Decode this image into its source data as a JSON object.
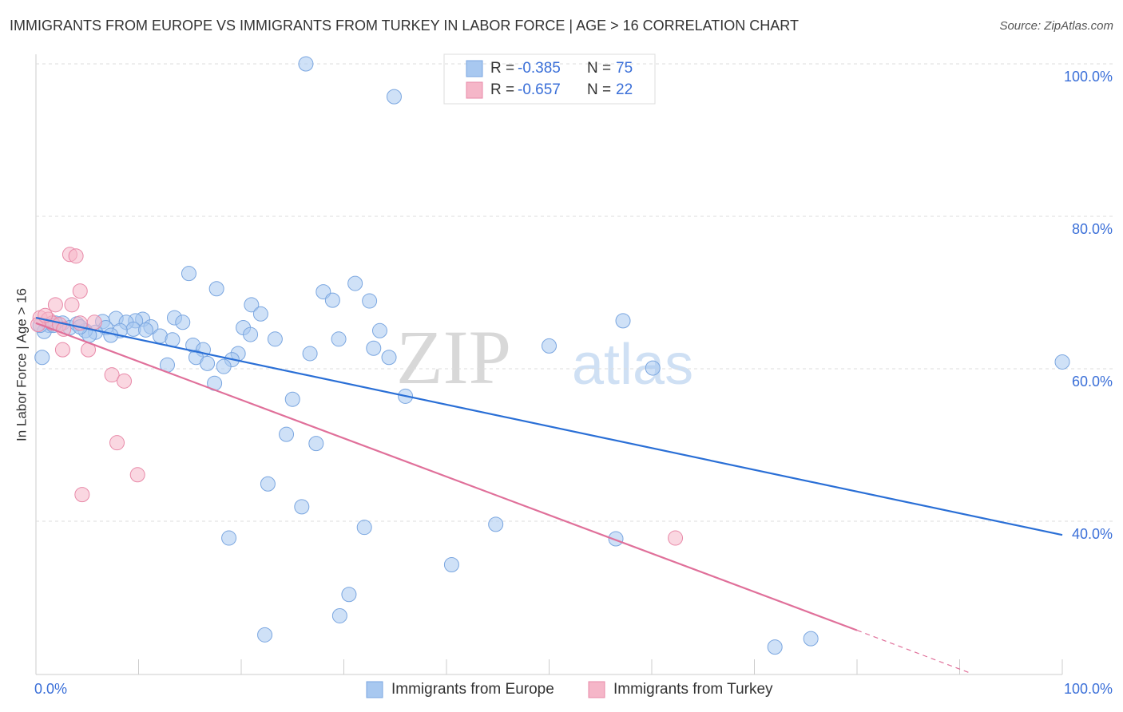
{
  "chart_data": {
    "type": "scatter",
    "title": "IMMIGRANTS FROM EUROPE VS IMMIGRANTS FROM TURKEY IN LABOR FORCE | AGE > 16 CORRELATION CHART",
    "source": "Source: ZipAtlas.com",
    "watermark": [
      "ZIP",
      "atlas"
    ],
    "y_label": "In Labor Force | Age > 16",
    "xlim": [
      0,
      100
    ],
    "ylim": [
      19.9,
      101
    ],
    "xticks": [
      {
        "value": 0,
        "label": "0.0%"
      },
      {
        "value": 100,
        "label": "100.0%"
      }
    ],
    "xminorticks": [
      10,
      20,
      30,
      40,
      50,
      60,
      70,
      80,
      90
    ],
    "yticks": [
      {
        "value": 40,
        "label": "40.0%"
      },
      {
        "value": 60,
        "label": "60.0%"
      },
      {
        "value": 80,
        "label": "80.0%"
      },
      {
        "value": 100,
        "label": "100.0%"
      }
    ],
    "grid": true,
    "stat_labels": {
      "r": "R =",
      "n": "N ="
    },
    "series": [
      {
        "name": "Immigrants from Europe",
        "color": "#a8c8f0",
        "edge": "#7aa6e0",
        "line_color": "#2a6fd6",
        "r": -0.385,
        "n": 75,
        "x": [
          26.3,
          34.9,
          14.9,
          17.6,
          31.1,
          28.0,
          28.9,
          32.5,
          21.0,
          21.9,
          13.5,
          7.8,
          10.4,
          14.3,
          9.7,
          6.5,
          8.8,
          20.2,
          11.2,
          2.6,
          1.3,
          3.3,
          9.5,
          10.7,
          33.5,
          20.9,
          8.2,
          6.8,
          5.8,
          4.8,
          5.2,
          7.3,
          12.1,
          23.3,
          13.3,
          29.5,
          15.3,
          16.3,
          32.9,
          26.7,
          19.7,
          15.6,
          19.1,
          34.4,
          50.0,
          57.2,
          16.7,
          18.3,
          12.8,
          60.1,
          100.0,
          17.4,
          25.0,
          36.0,
          24.4,
          27.3,
          22.6,
          25.9,
          44.8,
          32.0,
          18.8,
          56.5,
          40.5,
          30.5,
          29.6,
          22.3,
          75.5,
          72.0,
          0.6,
          0.8,
          0.4,
          1.9,
          4.0,
          1.7,
          4.3
        ],
        "values": [
          100.0,
          95.7,
          72.5,
          70.5,
          71.2,
          70.1,
          69.0,
          68.9,
          68.4,
          67.2,
          66.7,
          66.6,
          66.5,
          66.1,
          66.3,
          66.2,
          66.1,
          65.4,
          65.5,
          66.0,
          65.7,
          65.4,
          65.2,
          65.1,
          65.0,
          64.5,
          65.0,
          65.4,
          64.8,
          65.0,
          64.4,
          64.4,
          64.3,
          63.9,
          63.8,
          63.9,
          63.1,
          62.5,
          62.7,
          62.0,
          62.0,
          61.5,
          61.2,
          61.5,
          63.0,
          66.3,
          60.7,
          60.3,
          60.5,
          60.1,
          60.9,
          58.1,
          56.0,
          56.4,
          51.4,
          50.2,
          44.9,
          41.9,
          39.6,
          39.2,
          37.8,
          37.7,
          34.3,
          30.4,
          27.6,
          25.1,
          24.6,
          23.5,
          61.5,
          64.9,
          65.7,
          66.0,
          65.9,
          65.7,
          65.5
        ],
        "trend": {
          "x": [
            0,
            100
          ],
          "y": [
            66.7,
            38.2
          ]
        }
      },
      {
        "name": "Immigrants from Turkey",
        "color": "#f5b6c8",
        "edge": "#e889a8",
        "line_color": "#e0709a",
        "r": -0.657,
        "n": 22,
        "x": [
          3.3,
          3.9,
          4.3,
          1.9,
          3.5,
          5.7,
          0.4,
          1.2,
          1.6,
          2.3,
          2.7,
          5.1,
          2.6,
          7.4,
          8.6,
          7.9,
          9.9,
          4.5,
          62.3,
          0.2,
          0.9,
          4.3
        ],
        "values": [
          75.0,
          74.8,
          70.2,
          68.4,
          68.4,
          66.1,
          66.7,
          66.5,
          66.0,
          65.8,
          65.2,
          62.5,
          62.5,
          59.2,
          58.4,
          50.3,
          46.1,
          43.5,
          37.8,
          65.8,
          67.0,
          66.0
        ],
        "trend": {
          "x": [
            0,
            80
          ],
          "y": [
            66.0,
            25.7
          ]
        },
        "trend_dashed": {
          "x": [
            80,
            91
          ],
          "y": [
            25.7,
            20.1
          ]
        }
      }
    ]
  }
}
